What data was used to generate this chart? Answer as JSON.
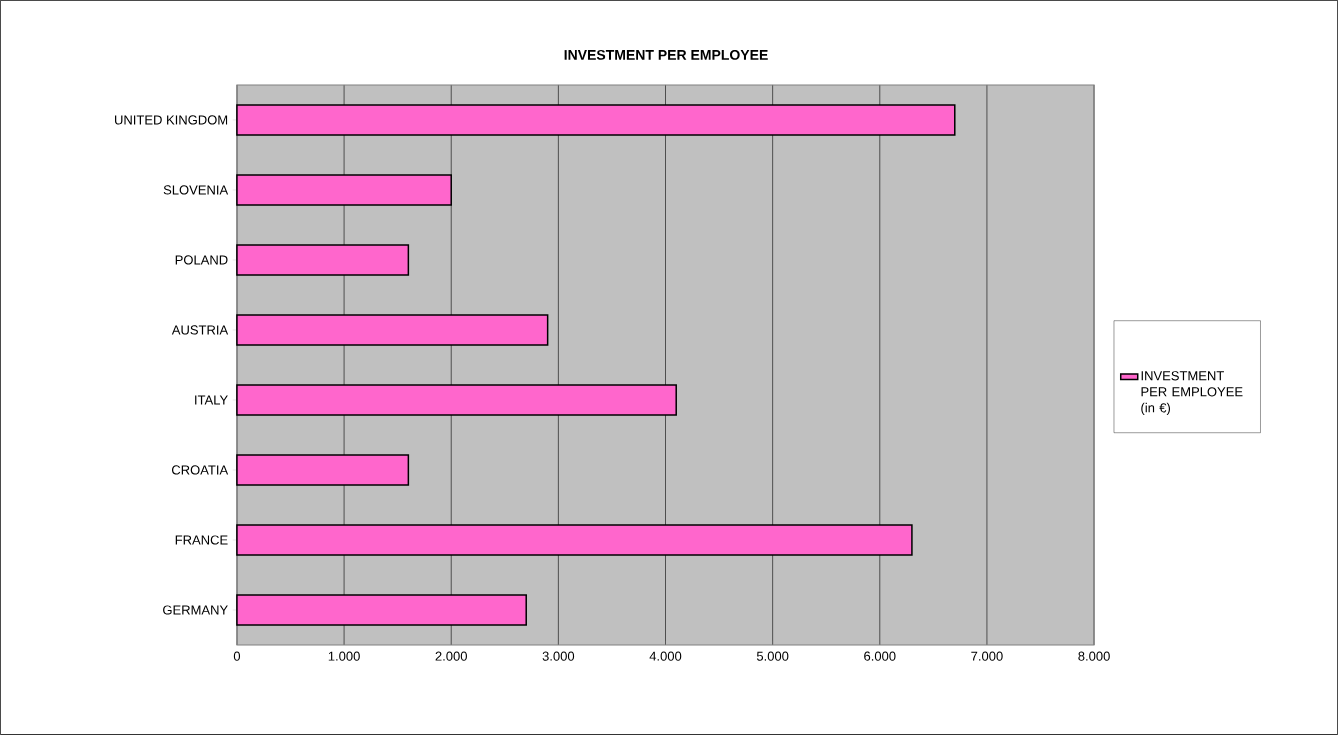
{
  "chart_data": {
    "type": "bar",
    "orientation": "horizontal",
    "title": "INVESTMENT PER EMPLOYEE",
    "categories": [
      "UNITED KINGDOM",
      "SLOVENIA",
      "POLAND",
      "AUSTRIA",
      "ITALY",
      "CROATIA",
      "FRANCE",
      "GERMANY"
    ],
    "series": [
      {
        "name": "INVESTMENT PER EMPLOYEE (in €)",
        "color": "#ff66cc",
        "values": [
          6700,
          2000,
          1600,
          2900,
          4100,
          1600,
          6300,
          2700
        ]
      }
    ],
    "xlim": [
      0,
      8000
    ],
    "xticks": [
      0,
      {
        "value": 1000,
        "label": "1.000"
      },
      {
        "value": 2000,
        "label": "2.000"
      },
      {
        "value": 3000,
        "label": "3.000"
      },
      {
        "value": 4000,
        "label": "4.000"
      },
      {
        "value": 5000,
        "label": "5.000"
      },
      {
        "value": 6000,
        "label": "6.000"
      },
      {
        "value": 7000,
        "label": "7.000"
      },
      {
        "value": 8000,
        "label": "8.000"
      }
    ],
    "grid": "x",
    "legend": "right"
  }
}
